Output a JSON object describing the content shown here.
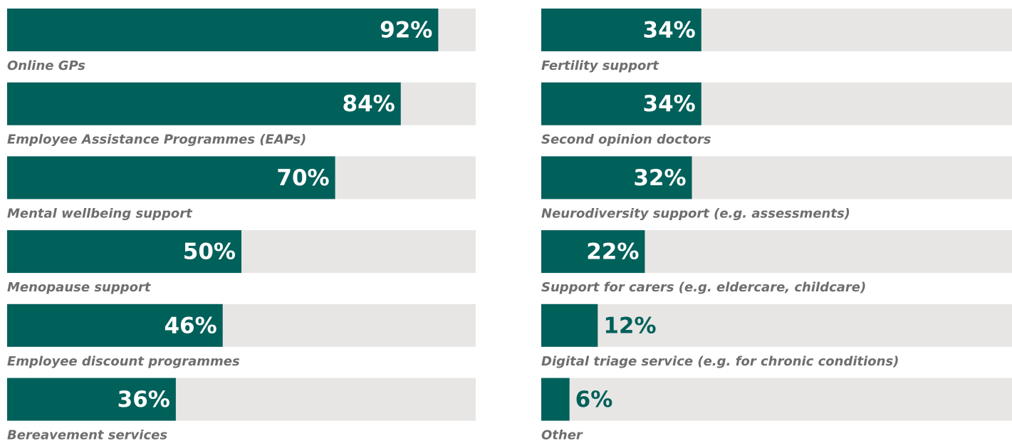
{
  "chart_data": [
    {
      "type": "bar",
      "categories": [
        "Online GPs",
        "Employee Assistance Programmes (EAPs)",
        "Mental wellbeing support",
        "Menopause support",
        "Employee discount programmes",
        "Bereavement services"
      ],
      "values": [
        92,
        84,
        70,
        50,
        46,
        36
      ],
      "value_labels": [
        "92%",
        "84%",
        "70%",
        "50%",
        "46%",
        "36%"
      ],
      "color": "#00605a",
      "track_color": "#e8e6e4",
      "xlim": [
        0,
        100
      ]
    },
    {
      "type": "bar",
      "categories": [
        "Fertility support",
        "Second opinion doctors",
        "Neurodiversity support (e.g. assessments)",
        "Support for carers (e.g. eldercare, childcare)",
        "Digital triage service (e.g. for chronic conditions)",
        "Other"
      ],
      "values": [
        34,
        34,
        32,
        22,
        12,
        6
      ],
      "value_labels": [
        "34%",
        "34%",
        "32%",
        "22%",
        "12%",
        "6%"
      ],
      "color": "#00605a",
      "track_color": "#e8e6e4",
      "xlim": [
        0,
        100
      ]
    }
  ]
}
